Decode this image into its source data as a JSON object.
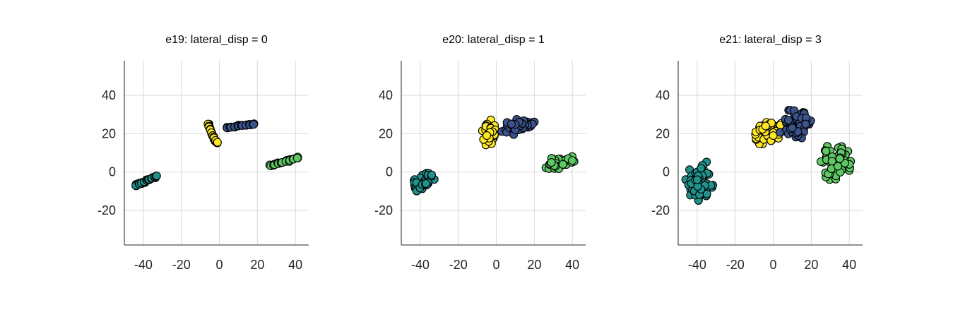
{
  "colors": {
    "teal": "#21918c",
    "yellow": "#fde725",
    "blue": "#3b528b",
    "green": "#5ec962",
    "point_edge": "#000000",
    "grid": "#d9d9d9",
    "axis": "#262626"
  },
  "chart_data": [
    {
      "type": "scatter",
      "title": "e19: lateral_disp = 0",
      "xlim": [
        -50,
        47
      ],
      "ylim": [
        -38,
        58
      ],
      "xticks": [
        -40,
        -20,
        0,
        20,
        40
      ],
      "yticks": [
        -20,
        0,
        20,
        40
      ],
      "grid": true,
      "series": [
        {
          "color": "teal",
          "spread": 0.6,
          "points": [
            [
              -44,
              -7
            ],
            [
              -42,
              -6.3
            ],
            [
              -41,
              -5.8
            ],
            [
              -39.5,
              -5.1
            ],
            [
              -38,
              -4.4
            ],
            [
              -37,
              -3.8
            ],
            [
              -35.5,
              -3.2
            ],
            [
              -34,
              -2.6
            ],
            [
              -33,
              -2
            ]
          ]
        },
        {
          "color": "yellow",
          "spread": 0.6,
          "points": [
            [
              -6,
              25
            ],
            [
              -5.5,
              23.5
            ],
            [
              -4.8,
              22
            ],
            [
              -4.2,
              20.5
            ],
            [
              -3.5,
              19
            ],
            [
              -2.8,
              17.8
            ],
            [
              -2,
              16.5
            ],
            [
              -1,
              15.5
            ]
          ]
        },
        {
          "color": "blue",
          "spread": 0.5,
          "points": [
            [
              4,
              23
            ],
            [
              6,
              23.3
            ],
            [
              8,
              23.6
            ],
            [
              10,
              24
            ],
            [
              12,
              24.2
            ],
            [
              14,
              24.4
            ],
            [
              16,
              24.6
            ],
            [
              18,
              24.8
            ]
          ]
        },
        {
          "color": "green",
          "spread": 0.6,
          "points": [
            [
              27,
              3.2
            ],
            [
              29,
              3.8
            ],
            [
              31,
              4.4
            ],
            [
              33,
              5
            ],
            [
              35,
              5.5
            ],
            [
              37,
              6.1
            ],
            [
              39,
              6.7
            ],
            [
              41,
              7.3
            ]
          ]
        }
      ]
    },
    {
      "type": "scatter",
      "title": "e20: lateral_disp = 1",
      "xlim": [
        -50,
        47
      ],
      "ylim": [
        -38,
        58
      ],
      "xticks": [
        -40,
        -20,
        0,
        20,
        40
      ],
      "yticks": [
        -20,
        0,
        20,
        40
      ],
      "grid": true,
      "series": [
        {
          "color": "teal",
          "spread": 2.5,
          "points": [
            [
              -43,
              -7
            ],
            [
              -41,
              -6
            ],
            [
              -39,
              -4.5
            ],
            [
              -37,
              -3.5
            ],
            [
              -35,
              -2.5
            ],
            [
              -40,
              -8
            ],
            [
              -38,
              -5
            ],
            [
              -36,
              -3
            ],
            [
              -42,
              -5.5
            ],
            [
              -39,
              -6.5
            ],
            [
              -34,
              -1.5
            ],
            [
              -37,
              -6
            ]
          ]
        },
        {
          "color": "yellow",
          "spread": 2.5,
          "points": [
            [
              -5,
              25
            ],
            [
              -5,
              22
            ],
            [
              -4,
              20
            ],
            [
              -3,
              18
            ],
            [
              -2,
              17
            ],
            [
              -3,
              23
            ],
            [
              -1,
              19
            ],
            [
              -4,
              16
            ],
            [
              -2,
              21
            ],
            [
              -5,
              19
            ]
          ]
        },
        {
          "color": "blue",
          "spread": 2.5,
          "points": [
            [
              5,
              22
            ],
            [
              7,
              23
            ],
            [
              9,
              24
            ],
            [
              11,
              24
            ],
            [
              13,
              25
            ],
            [
              15,
              24
            ],
            [
              17,
              25
            ],
            [
              19,
              25
            ],
            [
              10,
              22
            ],
            [
              14,
              23
            ],
            [
              12,
              26
            ],
            [
              8,
              25
            ]
          ]
        },
        {
          "color": "green",
          "spread": 2.5,
          "points": [
            [
              28,
              4
            ],
            [
              30,
              3
            ],
            [
              32,
              5
            ],
            [
              34,
              5
            ],
            [
              36,
              6
            ],
            [
              38,
              7
            ],
            [
              40,
              6
            ],
            [
              31,
              6
            ],
            [
              33,
              3
            ],
            [
              35,
              4
            ],
            [
              29,
              5
            ]
          ]
        }
      ]
    },
    {
      "type": "scatter",
      "title": "e21: lateral_disp = 3",
      "xlim": [
        -50,
        47
      ],
      "ylim": [
        -38,
        58
      ],
      "xticks": [
        -40,
        -20,
        0,
        20,
        40
      ],
      "yticks": [
        -20,
        0,
        20,
        40
      ],
      "grid": true,
      "series": [
        {
          "color": "teal",
          "spread": 3.5,
          "points": [
            [
              -43,
              -2
            ],
            [
              -41,
              -5
            ],
            [
              -39,
              -8
            ],
            [
              -37,
              -4
            ],
            [
              -36,
              -1
            ],
            [
              -40,
              0
            ],
            [
              -38,
              2
            ],
            [
              -42,
              -9
            ],
            [
              -37,
              -11
            ],
            [
              -35,
              -6
            ],
            [
              -39,
              -3
            ],
            [
              -41,
              -12
            ],
            [
              -36,
              -7
            ],
            [
              -43,
              -6
            ],
            [
              -38,
              -9
            ],
            [
              -40,
              -4
            ]
          ]
        },
        {
          "color": "yellow",
          "spread": 3.5,
          "points": [
            [
              -8,
              18
            ],
            [
              -6,
              20
            ],
            [
              -4,
              22
            ],
            [
              -2,
              23
            ],
            [
              0,
              24
            ],
            [
              2,
              23
            ],
            [
              -5,
              17
            ],
            [
              -3,
              19
            ],
            [
              -1,
              21
            ],
            [
              1,
              21
            ],
            [
              -7,
              22
            ],
            [
              -2,
              25
            ],
            [
              -4,
              24
            ],
            [
              0,
              19
            ]
          ]
        },
        {
          "color": "blue",
          "spread": 3.5,
          "points": [
            [
              7,
              22
            ],
            [
              9,
              25
            ],
            [
              11,
              28
            ],
            [
              13,
              30
            ],
            [
              10,
              21
            ],
            [
              12,
              24
            ],
            [
              14,
              26
            ],
            [
              16,
              22
            ],
            [
              8,
              27
            ],
            [
              11,
              32
            ],
            [
              15,
              28
            ],
            [
              13,
              19
            ],
            [
              10,
              23
            ],
            [
              17,
              25
            ]
          ]
        },
        {
          "color": "green",
          "spread": 3.5,
          "points": [
            [
              28,
              8
            ],
            [
              30,
              5
            ],
            [
              32,
              2
            ],
            [
              34,
              6
            ],
            [
              36,
              1
            ],
            [
              38,
              9
            ],
            [
              40,
              4
            ],
            [
              30,
              11
            ],
            [
              33,
              -2
            ],
            [
              36,
              12
            ],
            [
              29,
              -1
            ],
            [
              35,
              7
            ],
            [
              31,
              8
            ],
            [
              34,
              3
            ]
          ]
        }
      ]
    }
  ]
}
